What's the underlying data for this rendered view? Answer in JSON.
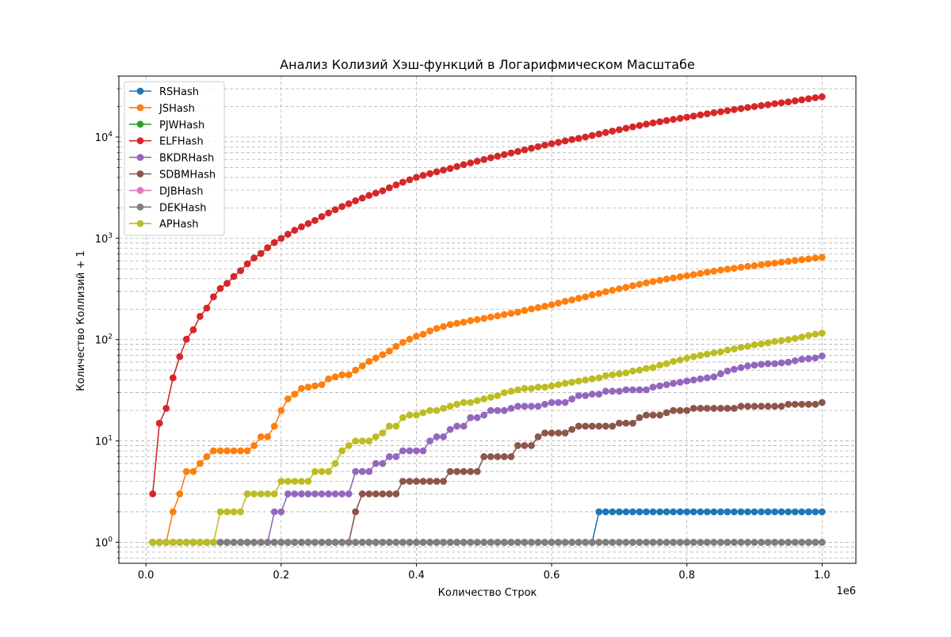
{
  "chart_data": {
    "type": "line",
    "title": "Анализ Колизий Хэш-функций в Логарифмическом Масштабе",
    "xlabel": "Количество Строк",
    "ylabel": "Количество Коллизий + 1",
    "x_offset_label": "1e6",
    "y_scale": "log",
    "xlim": [
      -40000,
      1050000
    ],
    "ylim": [
      0.62,
      40000
    ],
    "x_ticks": [
      0,
      200000,
      400000,
      600000,
      800000,
      1000000
    ],
    "x_tick_labels": [
      "0.0",
      "0.2",
      "0.4",
      "0.6",
      "0.8",
      "1.0"
    ],
    "y_ticks": [
      1,
      10,
      100,
      1000,
      10000
    ],
    "y_tick_labels": [
      "10^0",
      "10^1",
      "10^2",
      "10^3",
      "10^4"
    ],
    "grid": true,
    "legend_position": "top-left",
    "x": {
      "start": 10000,
      "step": 10000,
      "count": 100
    },
    "series": [
      {
        "name": "RSHash",
        "color": "#1f77b4",
        "segments": [
          [
            10000,
            1
          ],
          [
            660000,
            1
          ],
          [
            670000,
            2
          ],
          [
            1000000,
            2
          ]
        ]
      },
      {
        "name": "JSHash",
        "color": "#ff7f0e",
        "segments": [
          [
            10000,
            1
          ],
          [
            30000,
            1
          ],
          [
            40000,
            2
          ],
          [
            50000,
            3
          ],
          [
            60000,
            5
          ],
          [
            70000,
            5
          ],
          [
            80000,
            6
          ],
          [
            90000,
            7
          ],
          [
            100000,
            8
          ],
          [
            150000,
            8
          ],
          [
            160000,
            9
          ],
          [
            170000,
            11
          ],
          [
            180000,
            11
          ],
          [
            190000,
            14
          ],
          [
            200000,
            20
          ],
          [
            210000,
            26
          ],
          [
            220000,
            29
          ],
          [
            230000,
            33
          ],
          [
            240000,
            34
          ],
          [
            250000,
            35
          ],
          [
            260000,
            36
          ],
          [
            270000,
            41
          ],
          [
            280000,
            43
          ],
          [
            290000,
            45
          ],
          [
            300000,
            45
          ],
          [
            310000,
            50
          ],
          [
            320000,
            55
          ],
          [
            330000,
            61
          ],
          [
            340000,
            66
          ],
          [
            350000,
            71
          ],
          [
            360000,
            77
          ],
          [
            370000,
            86
          ],
          [
            380000,
            94
          ],
          [
            390000,
            101
          ],
          [
            400000,
            108
          ],
          [
            410000,
            113
          ],
          [
            420000,
            122
          ],
          [
            430000,
            129
          ],
          [
            440000,
            135
          ],
          [
            450000,
            141
          ],
          [
            500000,
            162
          ],
          [
            550000,
            187
          ],
          [
            600000,
            221
          ],
          [
            650000,
            265
          ],
          [
            700000,
            318
          ],
          [
            750000,
            375
          ],
          [
            800000,
            427
          ],
          [
            850000,
            487
          ],
          [
            900000,
            538
          ],
          [
            950000,
            593
          ],
          [
            1000000,
            650
          ]
        ]
      },
      {
        "name": "PJWHash",
        "color": "#2ca02c",
        "segments": [
          [
            10000,
            1
          ],
          [
            1000000,
            1
          ]
        ]
      },
      {
        "name": "ELFHash",
        "color": "#d62728",
        "segments": [
          [
            10000,
            3
          ],
          [
            20000,
            15
          ],
          [
            30000,
            21
          ],
          [
            40000,
            42
          ],
          [
            50000,
            68
          ],
          [
            60000,
            101
          ],
          [
            70000,
            125
          ],
          [
            80000,
            170
          ],
          [
            90000,
            205
          ],
          [
            100000,
            265
          ],
          [
            110000,
            320
          ],
          [
            120000,
            360
          ],
          [
            130000,
            420
          ],
          [
            140000,
            480
          ],
          [
            150000,
            560
          ],
          [
            160000,
            640
          ],
          [
            170000,
            710
          ],
          [
            180000,
            810
          ],
          [
            190000,
            910
          ],
          [
            200000,
            1000
          ],
          [
            250000,
            1500
          ],
          [
            300000,
            2200
          ],
          [
            350000,
            2950
          ],
          [
            400000,
            4000
          ],
          [
            450000,
            4900
          ],
          [
            500000,
            6000
          ],
          [
            550000,
            7200
          ],
          [
            600000,
            8600
          ],
          [
            650000,
            10000
          ],
          [
            700000,
            11800
          ],
          [
            750000,
            13800
          ],
          [
            800000,
            15700
          ],
          [
            850000,
            17800
          ],
          [
            900000,
            20000
          ],
          [
            950000,
            22200
          ],
          [
            1000000,
            25000
          ]
        ]
      },
      {
        "name": "BKDRHash",
        "color": "#9467bd",
        "segments": [
          [
            10000,
            1
          ],
          [
            180000,
            1
          ],
          [
            190000,
            2
          ],
          [
            200000,
            2
          ],
          [
            210000,
            3
          ],
          [
            300000,
            3
          ],
          [
            310000,
            5
          ],
          [
            330000,
            5
          ],
          [
            340000,
            6
          ],
          [
            350000,
            6
          ],
          [
            360000,
            7
          ],
          [
            370000,
            7
          ],
          [
            380000,
            8
          ],
          [
            410000,
            8
          ],
          [
            420000,
            10
          ],
          [
            440000,
            11
          ],
          [
            450000,
            13
          ],
          [
            470000,
            14
          ],
          [
            480000,
            17
          ],
          [
            490000,
            17
          ],
          [
            500000,
            18
          ],
          [
            510000,
            20
          ],
          [
            530000,
            20
          ],
          [
            540000,
            21
          ],
          [
            550000,
            22
          ],
          [
            580000,
            22
          ],
          [
            590000,
            23
          ],
          [
            600000,
            24
          ],
          [
            620000,
            24
          ],
          [
            630000,
            26
          ],
          [
            640000,
            28
          ],
          [
            670000,
            29
          ],
          [
            680000,
            31
          ],
          [
            700000,
            31
          ],
          [
            710000,
            32
          ],
          [
            740000,
            32
          ],
          [
            750000,
            34
          ],
          [
            760000,
            35
          ],
          [
            770000,
            36
          ],
          [
            780000,
            37
          ],
          [
            790000,
            38
          ],
          [
            800000,
            39
          ],
          [
            810000,
            40
          ],
          [
            820000,
            41
          ],
          [
            830000,
            42
          ],
          [
            840000,
            43
          ],
          [
            850000,
            46
          ],
          [
            860000,
            49
          ],
          [
            870000,
            51
          ],
          [
            880000,
            53
          ],
          [
            890000,
            55
          ],
          [
            900000,
            56
          ],
          [
            910000,
            57
          ],
          [
            930000,
            58
          ],
          [
            950000,
            60
          ],
          [
            960000,
            62
          ],
          [
            970000,
            64
          ],
          [
            980000,
            65
          ],
          [
            990000,
            66
          ],
          [
            1000000,
            69
          ]
        ]
      },
      {
        "name": "SDBMHash",
        "color": "#8c564b",
        "segments": [
          [
            10000,
            1
          ],
          [
            300000,
            1
          ],
          [
            310000,
            2
          ],
          [
            320000,
            3
          ],
          [
            370000,
            3
          ],
          [
            380000,
            4
          ],
          [
            440000,
            4
          ],
          [
            450000,
            5
          ],
          [
            490000,
            5
          ],
          [
            500000,
            7
          ],
          [
            540000,
            7
          ],
          [
            550000,
            9
          ],
          [
            570000,
            9
          ],
          [
            580000,
            11
          ],
          [
            590000,
            12
          ],
          [
            620000,
            12
          ],
          [
            630000,
            13
          ],
          [
            640000,
            14
          ],
          [
            690000,
            14
          ],
          [
            700000,
            15
          ],
          [
            720000,
            15
          ],
          [
            730000,
            17
          ],
          [
            740000,
            18
          ],
          [
            760000,
            18
          ],
          [
            770000,
            19
          ],
          [
            780000,
            20
          ],
          [
            800000,
            20
          ],
          [
            810000,
            21
          ],
          [
            870000,
            21
          ],
          [
            880000,
            22
          ],
          [
            940000,
            22
          ],
          [
            950000,
            23
          ],
          [
            990000,
            23
          ],
          [
            1000000,
            24
          ]
        ]
      },
      {
        "name": "DJBHash",
        "color": "#e377c2",
        "segments": [
          [
            10000,
            1
          ],
          [
            1000000,
            1
          ]
        ]
      },
      {
        "name": "DEKHash",
        "color": "#7f7f7f",
        "segments": [
          [
            10000,
            1
          ],
          [
            1000000,
            1
          ]
        ]
      },
      {
        "name": "APHash",
        "color": "#bcbd22",
        "segments": [
          [
            10000,
            1
          ],
          [
            100000,
            1
          ],
          [
            110000,
            2
          ],
          [
            140000,
            2
          ],
          [
            150000,
            3
          ],
          [
            190000,
            3
          ],
          [
            200000,
            4
          ],
          [
            240000,
            4
          ],
          [
            250000,
            5
          ],
          [
            270000,
            5
          ],
          [
            280000,
            6
          ],
          [
            290000,
            8
          ],
          [
            300000,
            9
          ],
          [
            310000,
            10
          ],
          [
            330000,
            10
          ],
          [
            340000,
            11
          ],
          [
            350000,
            12
          ],
          [
            360000,
            14
          ],
          [
            370000,
            14
          ],
          [
            380000,
            17
          ],
          [
            400000,
            18
          ],
          [
            410000,
            19
          ],
          [
            420000,
            20
          ],
          [
            430000,
            20
          ],
          [
            440000,
            21
          ],
          [
            450000,
            22
          ],
          [
            500000,
            26
          ],
          [
            550000,
            32
          ],
          [
            600000,
            35
          ],
          [
            650000,
            40
          ],
          [
            700000,
            46
          ],
          [
            750000,
            53
          ],
          [
            800000,
            66
          ],
          [
            850000,
            76
          ],
          [
            900000,
            89
          ],
          [
            950000,
            100
          ],
          [
            1000000,
            116
          ]
        ]
      }
    ]
  }
}
